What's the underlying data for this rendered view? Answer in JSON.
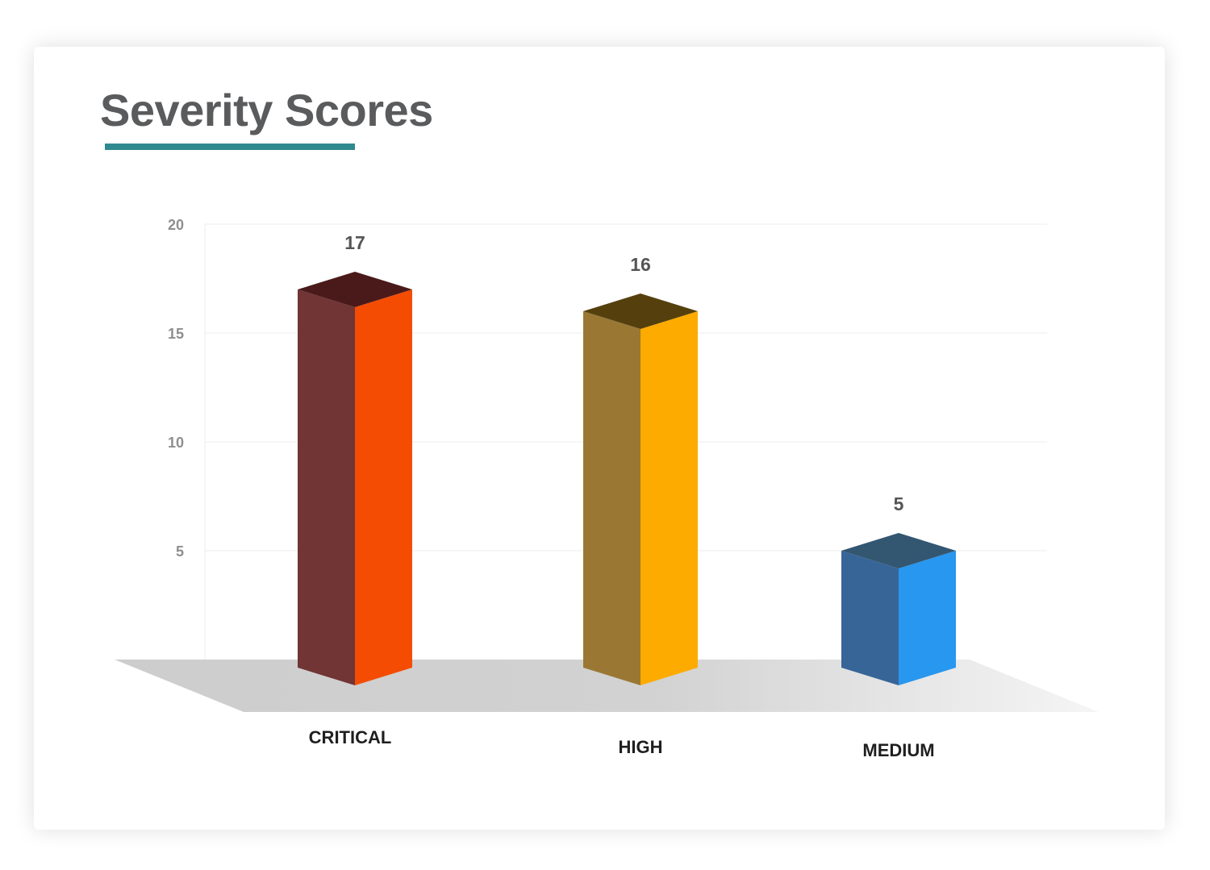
{
  "chart_data": {
    "type": "bar",
    "title": "Severity Scores",
    "categories": [
      "CRITICAL",
      "HIGH",
      "MEDIUM"
    ],
    "values": [
      17,
      16,
      5
    ],
    "ylim": [
      0,
      20
    ],
    "yticks": [
      5,
      10,
      15,
      20
    ],
    "grid": true,
    "style": "3d",
    "colors": {
      "title": "#5a5b5d",
      "title_underline": "#2f8a8f",
      "CRITICAL": {
        "front": "#f54c03",
        "side": "#703534",
        "top": "#4a1a1a"
      },
      "HIGH": {
        "front": "#feab00",
        "side": "#9a7834",
        "top": "#55400d"
      },
      "MEDIUM": {
        "front": "#2897ef",
        "side": "#376598",
        "top": "#335671"
      }
    }
  }
}
